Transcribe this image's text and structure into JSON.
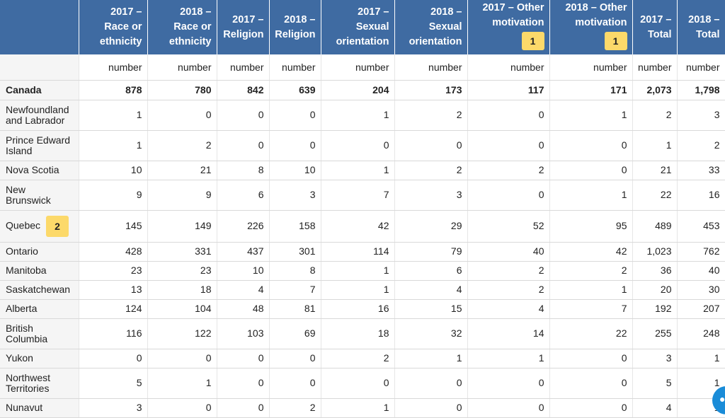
{
  "headers": [
    "2017 – Race or ethnicity",
    "2018 – Race or ethnicity",
    "2017 – Religion",
    "2018 – Religion",
    "2017 – Sexual orientation",
    "2018 – Sexual orientation",
    "2017 – Other motivation",
    "2018 – Other motivation",
    "2017 – Total",
    "2018 – Total"
  ],
  "header_footnotes": {
    "col6": "1",
    "col7": "1"
  },
  "unit": "number",
  "rows": [
    {
      "name": "Canada",
      "values": [
        "878",
        "780",
        "842",
        "639",
        "204",
        "173",
        "117",
        "171",
        "2,073",
        "1,798"
      ]
    },
    {
      "name": "Newfoundland and Labrador",
      "values": [
        "1",
        "0",
        "0",
        "0",
        "1",
        "2",
        "0",
        "1",
        "2",
        "3"
      ]
    },
    {
      "name": "Prince Edward Island",
      "values": [
        "1",
        "2",
        "0",
        "0",
        "0",
        "0",
        "0",
        "0",
        "1",
        "2"
      ]
    },
    {
      "name": "Nova Scotia",
      "values": [
        "10",
        "21",
        "8",
        "10",
        "1",
        "2",
        "2",
        "0",
        "21",
        "33"
      ]
    },
    {
      "name": "New Brunswick",
      "values": [
        "9",
        "9",
        "6",
        "3",
        "7",
        "3",
        "0",
        "1",
        "22",
        "16"
      ]
    },
    {
      "name": "Quebec",
      "footnote": "2",
      "values": [
        "145",
        "149",
        "226",
        "158",
        "42",
        "29",
        "52",
        "95",
        "489",
        "453"
      ]
    },
    {
      "name": "Ontario",
      "values": [
        "428",
        "331",
        "437",
        "301",
        "114",
        "79",
        "40",
        "42",
        "1,023",
        "762"
      ]
    },
    {
      "name": "Manitoba",
      "values": [
        "23",
        "23",
        "10",
        "8",
        "1",
        "6",
        "2",
        "2",
        "36",
        "40"
      ]
    },
    {
      "name": "Saskatchewan",
      "values": [
        "13",
        "18",
        "4",
        "7",
        "1",
        "4",
        "2",
        "1",
        "20",
        "30"
      ]
    },
    {
      "name": "Alberta",
      "values": [
        "124",
        "104",
        "48",
        "81",
        "16",
        "15",
        "4",
        "7",
        "192",
        "207"
      ]
    },
    {
      "name": "British Columbia",
      "values": [
        "116",
        "122",
        "103",
        "69",
        "18",
        "32",
        "14",
        "22",
        "255",
        "248"
      ]
    },
    {
      "name": "Yukon",
      "values": [
        "0",
        "0",
        "0",
        "0",
        "2",
        "1",
        "1",
        "0",
        "3",
        "1"
      ]
    },
    {
      "name": "Northwest Territories",
      "values": [
        "5",
        "1",
        "0",
        "0",
        "0",
        "0",
        "0",
        "0",
        "5",
        "1"
      ]
    },
    {
      "name": "Nunavut",
      "values": [
        "3",
        "0",
        "0",
        "2",
        "1",
        "0",
        "0",
        "0",
        "4",
        "1"
      ]
    }
  ]
}
